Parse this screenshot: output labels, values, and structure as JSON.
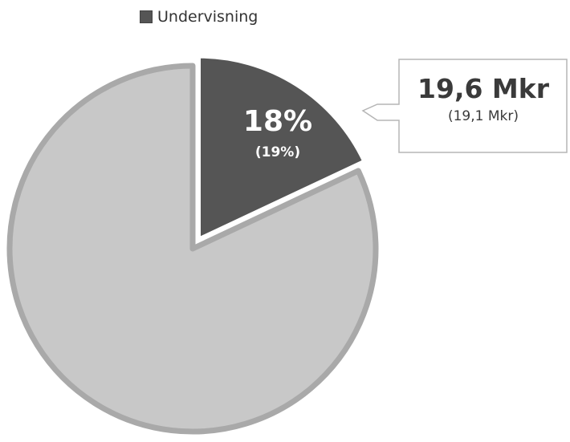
{
  "chart_data": {
    "type": "pie",
    "legend": [
      "Undervisning"
    ],
    "legend_placement": "top",
    "slices": [
      {
        "name": "Undervisning",
        "value": 18,
        "previous_value": 19,
        "label": "18%",
        "previous_label": "(19%)",
        "color": "#555555",
        "exploded": true
      },
      {
        "value": 82,
        "color": "#c8c8c8",
        "exploded": false
      }
    ],
    "callout": {
      "value": "19,6 Mkr",
      "previous": "(19,1 Mkr)"
    }
  },
  "colors": {
    "highlight": "#555555",
    "remainder": "#c8c8c8",
    "remainder_border": "#a9a9a9"
  }
}
